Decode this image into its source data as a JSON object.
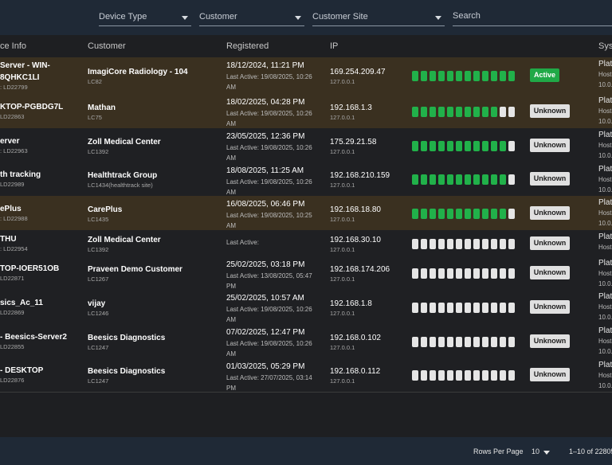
{
  "filters": {
    "device_type": "Device Type",
    "customer": "Customer",
    "customer_site": "Customer Site",
    "search_placeholder": "Search"
  },
  "columns": {
    "device_info": "ce Info",
    "customer": "Customer",
    "registered": "Registered",
    "ip": "IP",
    "system": "Sys"
  },
  "rows": [
    {
      "device_lines": [
        "Server - WIN-",
        "8QHKC1LI"
      ],
      "device_id": ": LD22799",
      "customer": "ImagiCore Radiology - 104",
      "customer_code": "LC82",
      "registered": "18/12/2024, 11:21 PM",
      "last_active": "Last Active: 19/08/2025, 10:26 AM",
      "ip": "169.254.209.47",
      "ip_local": "127.0.0.1",
      "signal": 12,
      "status": "Active",
      "sys1": "Plat",
      "sys2": "Host",
      "sys3": "10.0."
    },
    {
      "device_lines": [
        "KTOP-PGBDG7L"
      ],
      "device_id": "LD22863",
      "customer": "Mathan",
      "customer_code": "LC75",
      "registered": "18/02/2025, 04:28 PM",
      "last_active": "Last Active: 19/08/2025, 10:26 AM",
      "ip": "192.168.1.3",
      "ip_local": "127.0.0.1",
      "signal": 10,
      "status": "Unknown",
      "sys1": "Plat",
      "sys2": "Host",
      "sys3": "10.0."
    },
    {
      "device_lines": [
        "erver"
      ],
      "device_id": ": LD22963",
      "customer": "Zoll Medical Center",
      "customer_code": "LC1392",
      "registered": "23/05/2025, 12:36 PM",
      "last_active": "Last Active: 19/08/2025, 10:26 AM",
      "ip": "175.29.21.58",
      "ip_local": "127.0.0.1",
      "signal": 11,
      "status": "Unknown",
      "sys1": "Plat",
      "sys2": "Host",
      "sys3": "10.0."
    },
    {
      "device_lines": [
        "th tracking"
      ],
      "device_id": "LD22989",
      "customer": "Healthtrack Group",
      "customer_code": "LC1434(healthtrack site)",
      "registered": "18/08/2025, 11:25 AM",
      "last_active": "Last Active: 19/08/2025, 10:26 AM",
      "ip": "192.168.210.159",
      "ip_local": "127.0.0.1",
      "signal": 11,
      "status": "Unknown",
      "sys1": "Plat",
      "sys2": "Host",
      "sys3": "10.0."
    },
    {
      "device_lines": [
        "ePlus"
      ],
      "device_id": ": LD22988",
      "customer": "CarePlus",
      "customer_code": "LC1435",
      "registered": "16/08/2025, 06:46 PM",
      "last_active": "Last Active: 19/08/2025, 10:25 AM",
      "ip": "192.168.18.80",
      "ip_local": "127.0.0.1",
      "signal": 11,
      "status": "Unknown",
      "sys1": "Plat",
      "sys2": "Host",
      "sys3": "10.0."
    },
    {
      "device_lines": [
        "THU"
      ],
      "device_id": ": LD22954",
      "customer": "Zoll Medical Center",
      "customer_code": "LC1392",
      "registered": "",
      "last_active": "Last Active:",
      "ip": "192.168.30.10",
      "ip_local": "127.0.0.1",
      "signal": 0,
      "status": "Unknown",
      "sys1": "Plat",
      "sys2": "Host",
      "sys3": ""
    },
    {
      "device_lines": [
        "TOP-IOER51OB"
      ],
      "device_id": "LD22871",
      "customer": "Praveen Demo Customer",
      "customer_code": "LC1267",
      "registered": "25/02/2025, 03:18 PM",
      "last_active": "Last Active: 13/08/2025, 05:47 PM",
      "ip": "192.168.174.206",
      "ip_local": "127.0.0.1",
      "signal": 0,
      "status": "Unknown",
      "sys1": "Plat",
      "sys2": "Host",
      "sys3": "10.0."
    },
    {
      "device_lines": [
        "sics_Ac_11"
      ],
      "device_id": "LD22869",
      "customer": "vijay",
      "customer_code": "LC1246",
      "registered": "25/02/2025, 10:57 AM",
      "last_active": "Last Active: 19/08/2025, 10:26 AM",
      "ip": "192.168.1.8",
      "ip_local": "127.0.0.1",
      "signal": 0,
      "status": "Unknown",
      "sys1": "Plat",
      "sys2": "Host",
      "sys3": "10.0."
    },
    {
      "device_lines": [
        "- Beesics-Server2"
      ],
      "device_id": "LD22855",
      "customer": "Beesics Diagnostics",
      "customer_code": "LC1247",
      "registered": "07/02/2025, 12:47 PM",
      "last_active": "Last Active: 19/08/2025, 10:26 AM",
      "ip": "192.168.0.102",
      "ip_local": "127.0.0.1",
      "signal": 0,
      "status": "Unknown",
      "sys1": "Plat",
      "sys2": "Host",
      "sys3": "10.0."
    },
    {
      "device_lines": [
        "- DESKTOP"
      ],
      "device_id": "LD22876",
      "customer": "Beesics Diagnostics",
      "customer_code": "LC1247",
      "registered": "01/03/2025, 05:29 PM",
      "last_active": "Last Active: 27/07/2025, 03:14 PM",
      "ip": "192.168.0.112",
      "ip_local": "127.0.0.1",
      "signal": 0,
      "status": "Unknown",
      "sys1": "Plat",
      "sys2": "Host",
      "sys3": "10.0."
    }
  ],
  "footer": {
    "rows_per_page_label": "Rows Per Page",
    "rows_per_page_value": "10",
    "range": "1–10 of 22805"
  },
  "colors": {
    "signal_on": "#21b14a",
    "signal_off": "#e5e5e5",
    "highlight_row": "#3a3020",
    "active_badge": "#20a947"
  }
}
